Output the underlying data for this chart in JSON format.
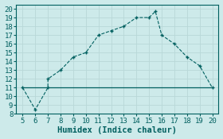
{
  "x_main": [
    5,
    6,
    7,
    7,
    8,
    9,
    10,
    11,
    12,
    13,
    14,
    15,
    15.5,
    16,
    17,
    18,
    19,
    20
  ],
  "y_main": [
    11,
    8.5,
    11,
    12,
    13,
    14.5,
    15,
    17,
    17.5,
    18,
    19,
    19,
    19.7,
    17,
    16,
    14.5,
    13.5,
    11
  ],
  "x_flat": [
    5,
    7,
    10,
    15.5,
    20
  ],
  "y_flat": [
    11,
    11,
    11,
    11,
    11
  ],
  "line_color": "#005f5f",
  "bg_color": "#cdeaea",
  "grid_major_color": "#b8d8d8",
  "grid_minor_color": "#cde8e8",
  "xlabel": "Humidex (Indice chaleur)",
  "xlim": [
    4.5,
    20.5
  ],
  "ylim": [
    8,
    20.5
  ],
  "xticks": [
    5,
    6,
    7,
    8,
    9,
    10,
    11,
    12,
    13,
    14,
    15,
    16,
    17,
    18,
    19,
    20
  ],
  "yticks": [
    8,
    9,
    10,
    11,
    12,
    13,
    14,
    15,
    16,
    17,
    18,
    19,
    20
  ],
  "xlabel_fontsize": 7.5,
  "tick_fontsize": 6.5,
  "figsize": [
    2.8,
    1.75
  ],
  "dpi": 100
}
